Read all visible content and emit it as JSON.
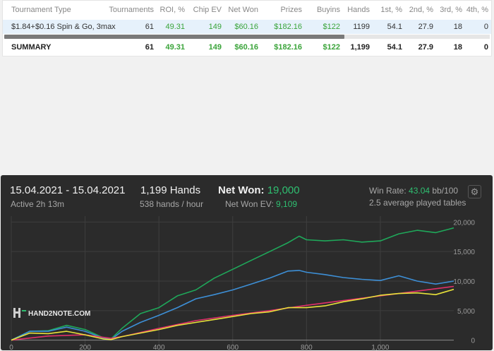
{
  "table": {
    "columns": [
      "Tournament Type",
      "Tournaments",
      "ROI, %",
      "Chip EV",
      "Net Won",
      "Prizes",
      "Buyins",
      "Hands",
      "1st, %",
      "2nd, %",
      "3rd, %",
      "4th, %"
    ],
    "row": [
      "$1.84+$0.16 Spin & Go, 3max",
      "61",
      "49.31",
      "149",
      "$60.16",
      "$182.16",
      "$122",
      "1199",
      "54.1",
      "27.9",
      "18",
      "0"
    ],
    "summary": [
      "SUMMARY",
      "61",
      "49.31",
      "149",
      "$60.16",
      "$182.16",
      "$122",
      "1,199",
      "54.1",
      "27.9",
      "18",
      "0"
    ]
  },
  "graph": {
    "date_range": "15.04.2021 - 15.04.2021",
    "active": "Active 2h 13m",
    "hands": "1,199 Hands",
    "hands_per_hour": "538 hands / hour",
    "net_won_label": "Net Won:",
    "net_won_value": "19,000",
    "net_won_ev_label": "Net Won  EV:",
    "net_won_ev_value": "9,109",
    "win_rate_label": "Win Rate:",
    "win_rate_value": "43.04",
    "win_rate_unit": "bb/100",
    "tables_text": "2.5 average played tables",
    "gear_icon": "gear-icon",
    "watermark": "HAND2NOTE.COM"
  },
  "chart_data": {
    "type": "line",
    "x_ticks": [
      "0",
      "200",
      "400",
      "600",
      "800",
      "1,000"
    ],
    "y_ticks": [
      "0",
      "5,000",
      "10,000",
      "15,000",
      "20,000"
    ],
    "xlim": [
      0,
      1199
    ],
    "ylim": [
      -1000,
      21000
    ],
    "grid": true,
    "legend": "none",
    "series": [
      {
        "color": "#1fa85a",
        "x": [
          0,
          50,
          100,
          150,
          200,
          250,
          270,
          300,
          350,
          400,
          450,
          500,
          550,
          600,
          650,
          700,
          750,
          780,
          800,
          850,
          900,
          950,
          1000,
          1050,
          1100,
          1150,
          1199
        ],
        "y": [
          0,
          1500,
          1600,
          2500,
          1800,
          400,
          200,
          2000,
          4500,
          5500,
          7500,
          8500,
          10500,
          12000,
          13500,
          15000,
          16500,
          17600,
          17000,
          16800,
          17000,
          16600,
          16800,
          18000,
          18600,
          18200,
          19000
        ]
      },
      {
        "color": "#3d8fd6",
        "x": [
          0,
          50,
          100,
          150,
          200,
          250,
          270,
          300,
          350,
          400,
          450,
          500,
          550,
          600,
          650,
          700,
          750,
          780,
          800,
          850,
          900,
          950,
          1000,
          1050,
          1100,
          1150,
          1199
        ],
        "y": [
          0,
          1500,
          1500,
          2200,
          1500,
          300,
          100,
          1500,
          3000,
          4200,
          5500,
          7000,
          7700,
          8500,
          9500,
          10500,
          11700,
          11800,
          11500,
          11100,
          10600,
          10300,
          10100,
          10900,
          10000,
          9500,
          10000
        ]
      },
      {
        "color": "#e0306a",
        "x": [
          0,
          100,
          200,
          270,
          300,
          400,
          500,
          600,
          700,
          800,
          900,
          1000,
          1100,
          1199
        ],
        "y": [
          0,
          700,
          900,
          300,
          600,
          2000,
          3300,
          4200,
          5000,
          5900,
          6700,
          7500,
          8300,
          9100
        ]
      },
      {
        "color": "#e8e23a",
        "x": [
          0,
          50,
          100,
          150,
          200,
          250,
          270,
          300,
          350,
          400,
          450,
          500,
          550,
          600,
          650,
          700,
          750,
          800,
          850,
          900,
          950,
          1000,
          1050,
          1100,
          1150,
          1199
        ],
        "y": [
          0,
          1200,
          1100,
          1500,
          900,
          200,
          100,
          600,
          1200,
          1800,
          2500,
          3000,
          3500,
          4000,
          4500,
          4800,
          5500,
          5500,
          5800,
          6500,
          7000,
          7600,
          7900,
          8000,
          7700,
          8600
        ]
      }
    ]
  }
}
